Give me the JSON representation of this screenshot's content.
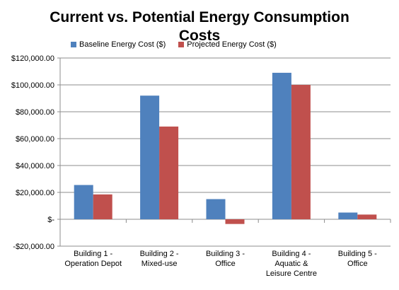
{
  "chart_data": {
    "type": "bar",
    "title": "Current vs. Potential Energy Consumption Costs",
    "categories": [
      "Building 1 - Operation Depot",
      "Building 2 - Mixed-use",
      "Building 3 - Office",
      "Building 4 - Aquatic & Leisure Centre",
      "Building 5 - Office"
    ],
    "category_lines": [
      [
        "Building 1 -",
        "Operation Depot"
      ],
      [
        "Building 2 -",
        "Mixed-use"
      ],
      [
        "Building 3 -",
        "Office"
      ],
      [
        "Building 4 -",
        "Aquatic &",
        "Leisure Centre"
      ],
      [
        "Building 5 -",
        "Office"
      ]
    ],
    "series": [
      {
        "name": "Baseline Energy Cost ($)",
        "color": "#4F81BD",
        "values": [
          25500,
          92000,
          15000,
          109000,
          5000
        ]
      },
      {
        "name": "Projected Energy Cost ($)",
        "color": "#C0504D",
        "values": [
          18500,
          69000,
          -3500,
          100000,
          3500
        ]
      }
    ],
    "ylim": [
      -20000,
      120000
    ],
    "ytick_labels": [
      "-$20,000.00",
      "$-",
      "$20,000.00",
      "$40,000.00",
      "$60,000.00",
      "$80,000.00",
      "$100,000.00",
      "$120,000.00"
    ],
    "ytick_values": [
      -20000,
      0,
      20000,
      40000,
      60000,
      80000,
      100000,
      120000
    ],
    "grid": true,
    "legend_position": "top"
  }
}
